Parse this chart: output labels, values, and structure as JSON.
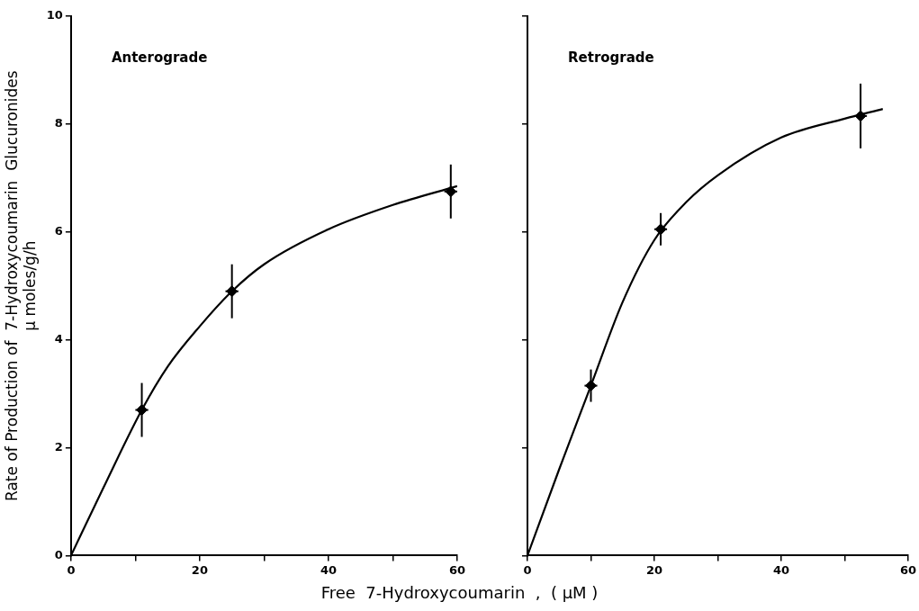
{
  "chart_data": [
    {
      "type": "scatter",
      "annotations": [
        "Anterograde"
      ],
      "ylabel": "Rate of Production of  7-Hydroxycoumarin  Glucuronides\nµ moles/g/h",
      "xlabel": "Free  7-Hydroxycoumarin  ,  ( µM )",
      "xlim": [
        0,
        60
      ],
      "xticks": [
        0,
        {
          "value": 10,
          "label": null
        },
        20,
        {
          "value": 30,
          "label": null
        },
        40,
        {
          "value": 50,
          "label": null
        },
        60
      ],
      "ylim": [
        0,
        10
      ],
      "yticks": [
        0,
        2,
        4,
        6,
        8,
        10
      ],
      "grid": false,
      "series": [
        {
          "marker": "diamond",
          "color": "#000000",
          "x": [
            11,
            25,
            59
          ],
          "values": [
            2.7,
            4.9,
            6.75
          ],
          "errors": [
            0.5,
            0.5,
            0.5
          ],
          "xerrors": [
            1,
            1,
            1
          ]
        },
        {
          "type": "line",
          "color": "#000000",
          "line_style": "solid",
          "x": [
            0,
            5,
            11,
            15,
            20,
            25,
            30,
            40,
            50,
            60
          ],
          "values": [
            0,
            1.25,
            2.7,
            3.5,
            4.25,
            4.9,
            5.4,
            6.05,
            6.5,
            6.85
          ]
        }
      ]
    },
    {
      "type": "scatter",
      "annotations": [
        "Retrograde"
      ],
      "xlim": [
        0,
        60
      ],
      "xticks": [
        0,
        {
          "value": 10,
          "label": null
        },
        20,
        {
          "value": 30,
          "label": null
        },
        40,
        {
          "value": 50,
          "label": null
        },
        60
      ],
      "ylim": [
        0,
        10
      ],
      "yticks": [
        0,
        2,
        4,
        6,
        8,
        10
      ],
      "tick_labels": "x",
      "grid": false,
      "series": [
        {
          "marker": "diamond",
          "color": "#000000",
          "x": [
            10,
            21,
            52.5
          ],
          "values": [
            3.15,
            6.05,
            8.15
          ],
          "errors": [
            0.3,
            0.3,
            0.6
          ],
          "xerrors": [
            1,
            1,
            1
          ]
        },
        {
          "type": "line",
          "color": "#000000",
          "line_style": "solid",
          "x": [
            0,
            5,
            10,
            15,
            20,
            25,
            30,
            40,
            50,
            56
          ],
          "values": [
            0,
            1.6,
            3.15,
            4.7,
            5.85,
            6.55,
            7.05,
            7.75,
            8.1,
            8.28
          ]
        }
      ]
    }
  ]
}
